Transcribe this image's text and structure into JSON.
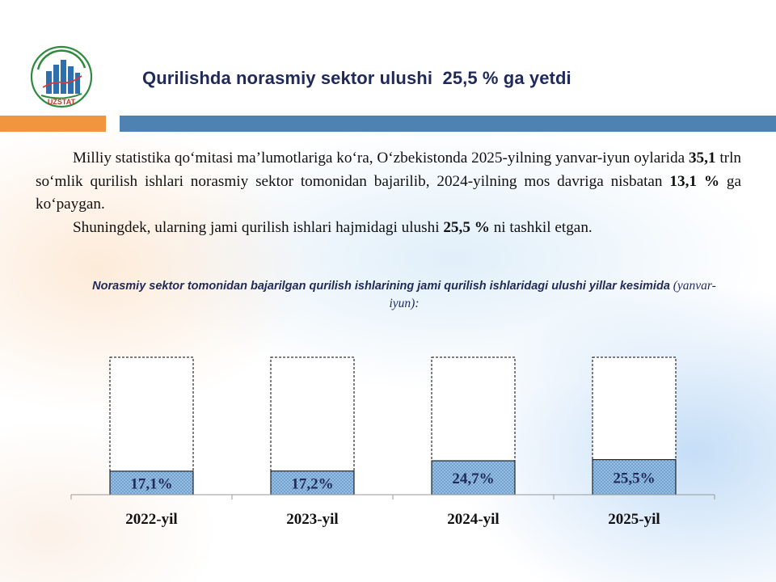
{
  "header": {
    "logo_text": "UZSTAT",
    "title": "Qurilishda norasmiy sektor ulushi  25,5 % ga yetdi"
  },
  "body": {
    "p1": {
      "a": "Milliy statistika qo‘mitasi ma’lumotlariga ko‘ra, O‘zbekistonda 2025-yilning yanvar-iyun oylarida ",
      "b": "35,1",
      "c": " trln so‘mlik qurilish ishlari norasmiy sektor tomonidan bajarilib, 2024-yilning mos davriga nisbatan ",
      "d": "13,1 %",
      "e": " ga ko‘paygan."
    },
    "p2": {
      "a": "Shuningdek, ularning jami qurilish ishlari hajmidagi ulushi ",
      "b": "25,5 %",
      "c": " ni tashkil etgan."
    }
  },
  "chart_title": {
    "main": "Norasmiy sektor tomonidan bajarilgan qurilish ishlarining jami qurilish ishlaridagi ulushi yillar kesimida",
    "unit": " (yanvar-iyun):"
  },
  "chart_data": {
    "type": "bar",
    "categories": [
      "2022-yil",
      "2023-yil",
      "2024-yil",
      "2025-yil"
    ],
    "values": [
      17.1,
      17.2,
      24.7,
      25.5
    ],
    "labels": [
      "17,1%",
      "17,2%",
      "24,7%",
      "25,5%"
    ],
    "total": 100,
    "ylim": [
      0,
      100
    ],
    "stacked_full": true,
    "grid": false,
    "colors": {
      "fill": "#9cc3e6",
      "hatch": "#5b8fbf",
      "outline": "#000000",
      "text": "#1f2a5a"
    }
  }
}
